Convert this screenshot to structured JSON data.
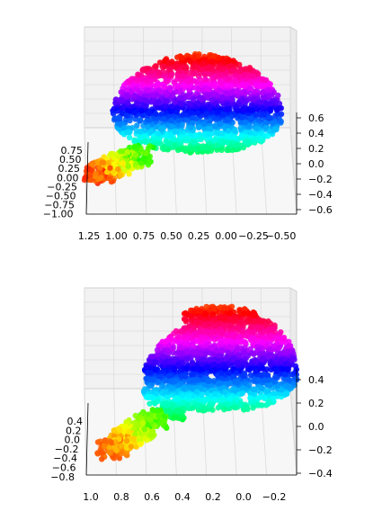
{
  "chart_data": [
    {
      "type": "scatter",
      "projection": "3d",
      "title": "",
      "xlabel": "",
      "ylabel": "",
      "zlabel": "",
      "xlim": [
        -0.5,
        1.25
      ],
      "ylim": [
        -1.0,
        0.75
      ],
      "zlim": [
        -0.6,
        0.6
      ],
      "x_ticks": [
        "1.25",
        "1.00",
        "0.75",
        "0.50",
        "0.25",
        "0.00",
        "−0.25",
        "−0.50"
      ],
      "y_ticks": [
        "0.75",
        "0.50",
        "0.25",
        "0.00",
        "−0.25",
        "−0.50",
        "−0.75",
        "−1.00"
      ],
      "z_ticks": [
        "0.6",
        "0.4",
        "0.2",
        "0.0",
        "−0.2",
        "−0.4",
        "−0.6"
      ],
      "grid": true,
      "colormap": "hsv",
      "point_count_approx": 3000
    },
    {
      "type": "scatter",
      "projection": "3d",
      "title": "",
      "xlabel": "",
      "ylabel": "",
      "zlabel": "",
      "xlim": [
        -0.2,
        1.0
      ],
      "ylim": [
        -0.8,
        0.4
      ],
      "zlim": [
        -0.4,
        0.4
      ],
      "x_ticks": [
        "1.0",
        "0.8",
        "0.6",
        "0.4",
        "0.2",
        "0.0",
        "−0.2"
      ],
      "y_ticks": [
        "0.4",
        "0.2",
        "0.0",
        "−0.2",
        "−0.4",
        "−0.6",
        "−0.8"
      ],
      "z_ticks": [
        "0.4",
        "0.2",
        "0.0",
        "−0.2",
        "−0.4"
      ],
      "grid": true,
      "colormap": "hsv",
      "point_count_approx": 3000
    }
  ]
}
